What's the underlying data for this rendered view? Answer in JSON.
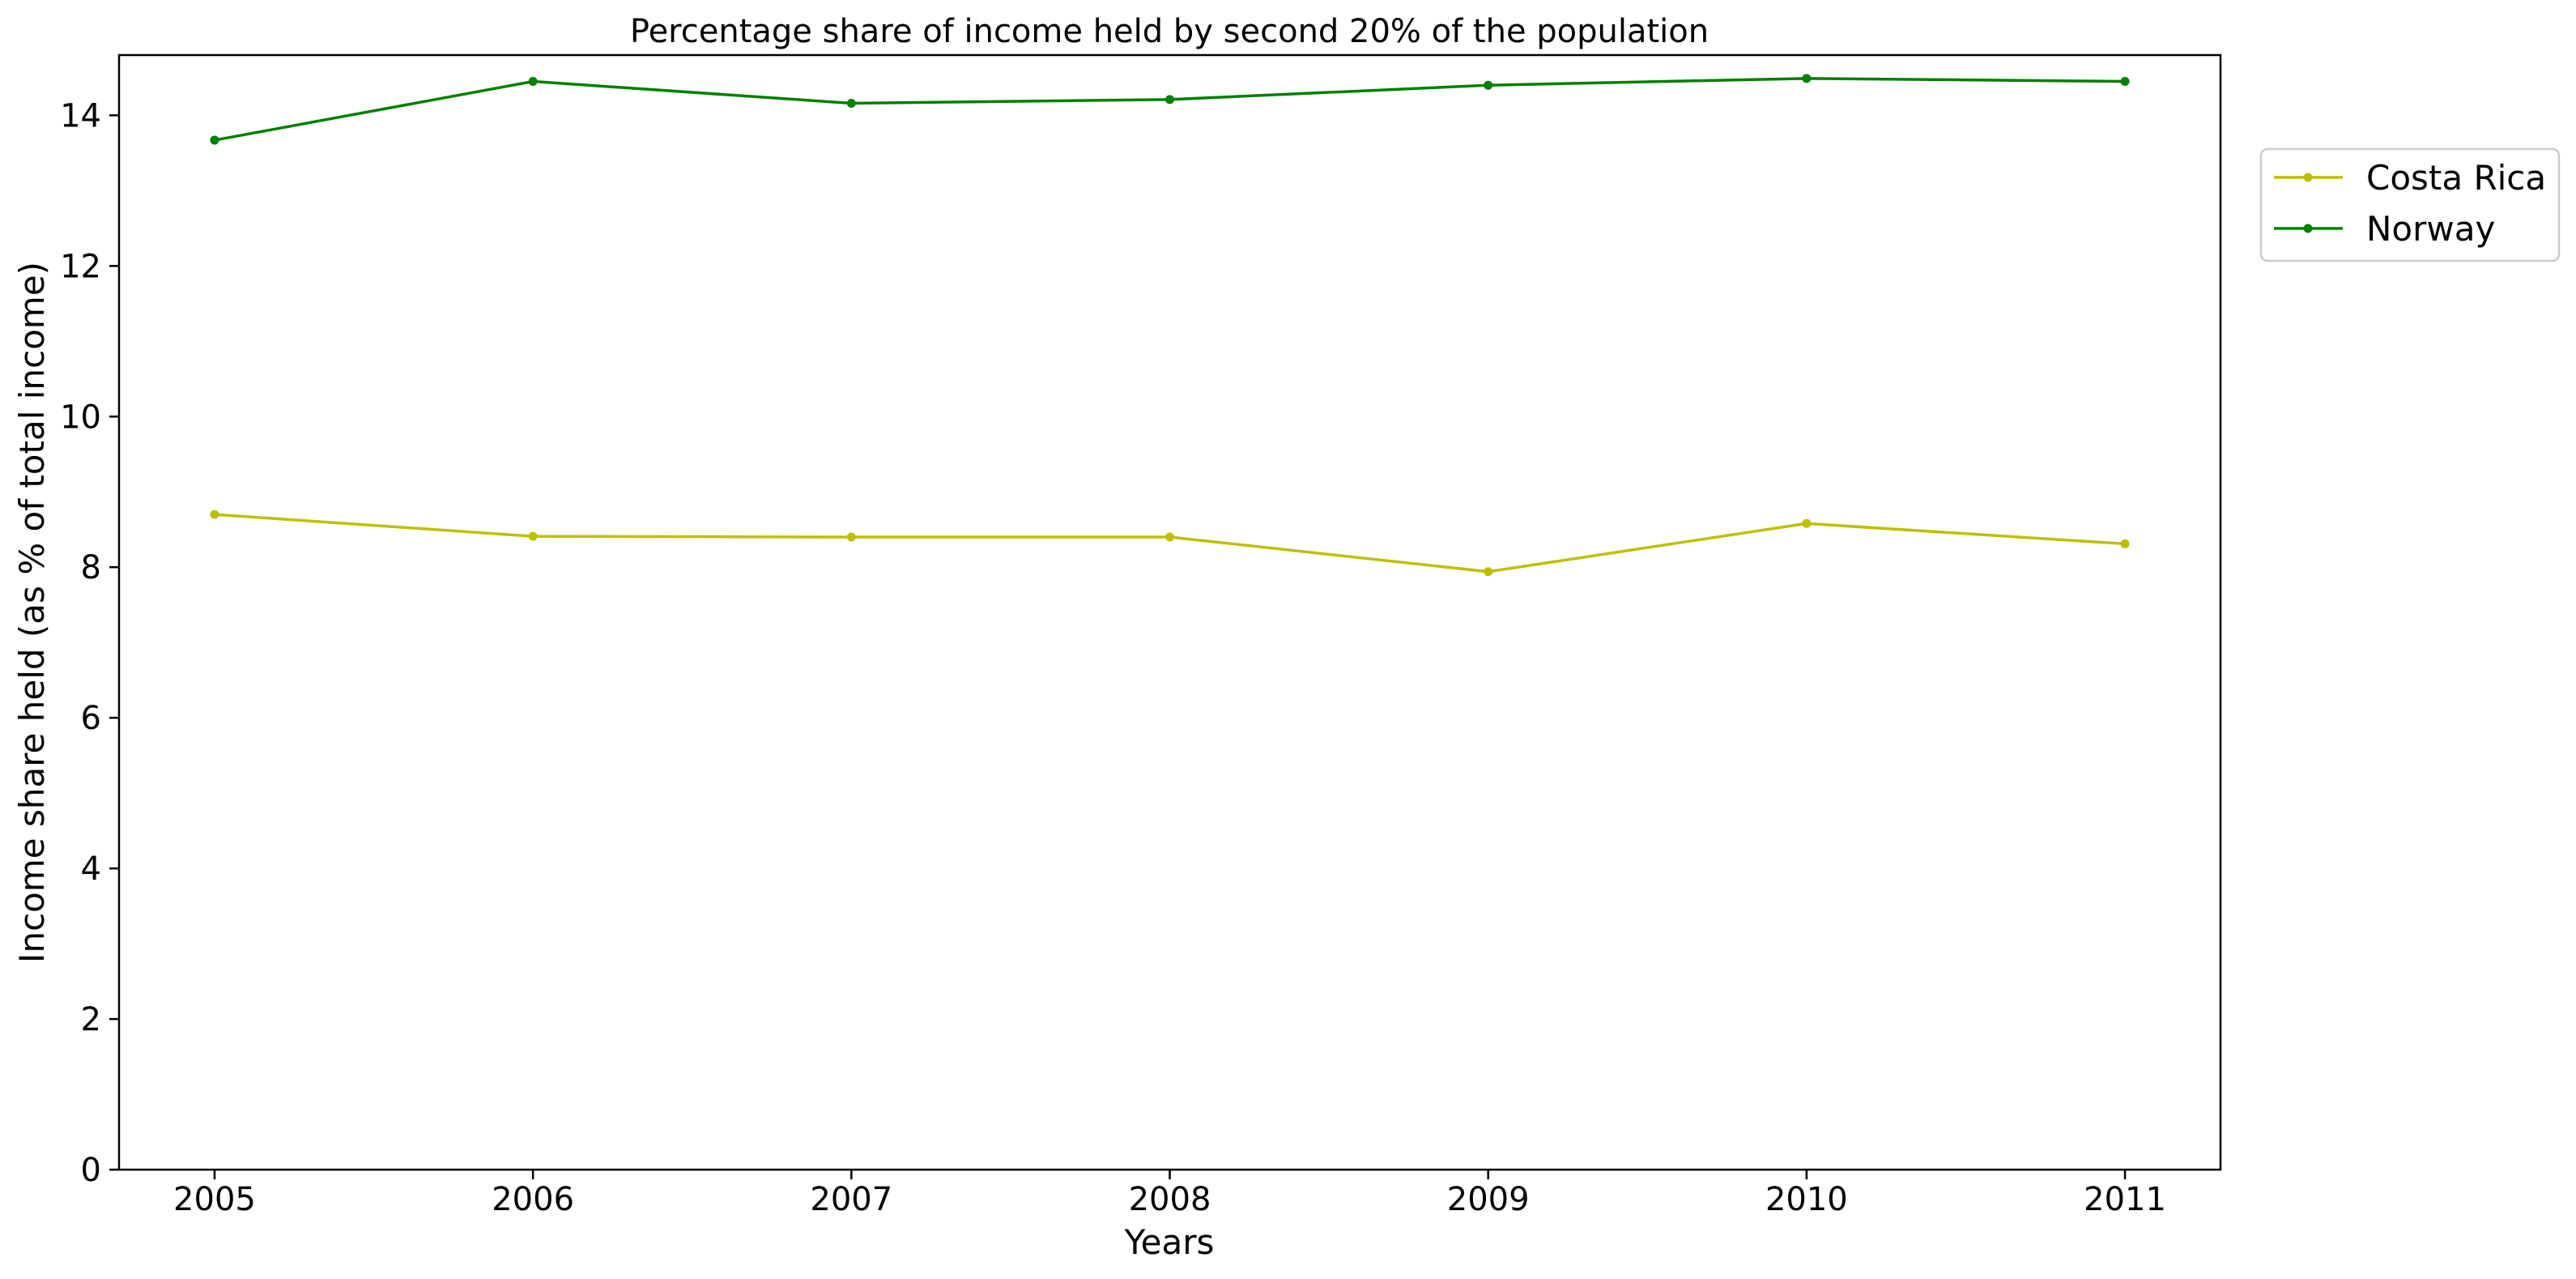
{
  "chart_data": {
    "type": "line",
    "title": "Percentage share of income held by second 20% of the population",
    "xlabel": "Years",
    "ylabel": "Income share held (as % of total income)",
    "x": [
      2005,
      2006,
      2007,
      2008,
      2009,
      2010,
      2011
    ],
    "x_tick_labels": [
      "2005",
      "2006",
      "2007",
      "2008",
      "2009",
      "2010",
      "2011"
    ],
    "y_ticks": [
      0,
      2,
      4,
      6,
      8,
      10,
      12,
      14
    ],
    "y_tick_labels": [
      "0",
      "2",
      "4",
      "6",
      "8",
      "10",
      "12",
      "14"
    ],
    "ylim": [
      0,
      14.8
    ],
    "xlim": [
      2004.7,
      2011.3
    ],
    "grid": false,
    "legend_position": "outside-top-right",
    "series": [
      {
        "name": "Costa Rica",
        "color": "#bfbf00",
        "marker": "dot",
        "values": [
          8.7,
          8.41,
          8.4,
          8.4,
          7.94,
          8.58,
          8.31
        ]
      },
      {
        "name": "Norway",
        "color": "#008000",
        "marker": "dot",
        "values": [
          13.67,
          14.45,
          14.16,
          14.21,
          14.4,
          14.49,
          14.45
        ]
      }
    ]
  }
}
